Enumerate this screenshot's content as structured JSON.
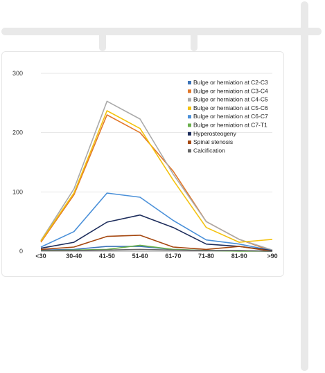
{
  "chart_data": {
    "type": "line",
    "title": "",
    "xlabel": "",
    "ylabel": "",
    "categories": [
      "<30",
      "30-40",
      "41-50",
      "51-60",
      "61-70",
      "71-80",
      "81-90",
      ">90"
    ],
    "ylim": [
      0,
      300
    ],
    "yticks": [
      0,
      100,
      200,
      300
    ],
    "grid": true,
    "legend_position": "top-right",
    "series": [
      {
        "name": "Bulge or herniation at C2-C3",
        "color": "#3d74b8",
        "values": [
          2,
          3,
          8,
          8,
          3,
          1,
          1,
          0
        ]
      },
      {
        "name": "Bulge or herniation at C3-C4",
        "color": "#e2782b",
        "values": [
          15,
          95,
          230,
          200,
          135,
          50,
          20,
          0
        ]
      },
      {
        "name": "Bulge or herniation at C4-C5",
        "color": "#aaaaaa",
        "values": [
          18,
          105,
          253,
          223,
          130,
          50,
          20,
          2
        ]
      },
      {
        "name": "Bulge or herniation at C5-C6",
        "color": "#f4c20d",
        "values": [
          17,
          98,
          237,
          207,
          120,
          40,
          15,
          20
        ]
      },
      {
        "name": "Bulge or herniation at C6-C7",
        "color": "#4a90d9",
        "values": [
          7,
          33,
          98,
          91,
          52,
          19,
          12,
          1
        ]
      },
      {
        "name": "Bulge or herniation at C7-T1",
        "color": "#6ab04c",
        "values": [
          1,
          2,
          3,
          10,
          3,
          1,
          0,
          0
        ]
      },
      {
        "name": "Hyperosteogeny",
        "color": "#1d2d5c",
        "values": [
          5,
          15,
          49,
          61,
          40,
          12,
          8,
          1
        ]
      },
      {
        "name": "Spinal stenosis",
        "color": "#a5470f",
        "values": [
          3,
          7,
          25,
          27,
          7,
          3,
          8,
          0
        ]
      },
      {
        "name": "Calcification",
        "color": "#666666",
        "values": [
          1,
          1,
          2,
          3,
          2,
          1,
          1,
          0
        ]
      }
    ]
  }
}
